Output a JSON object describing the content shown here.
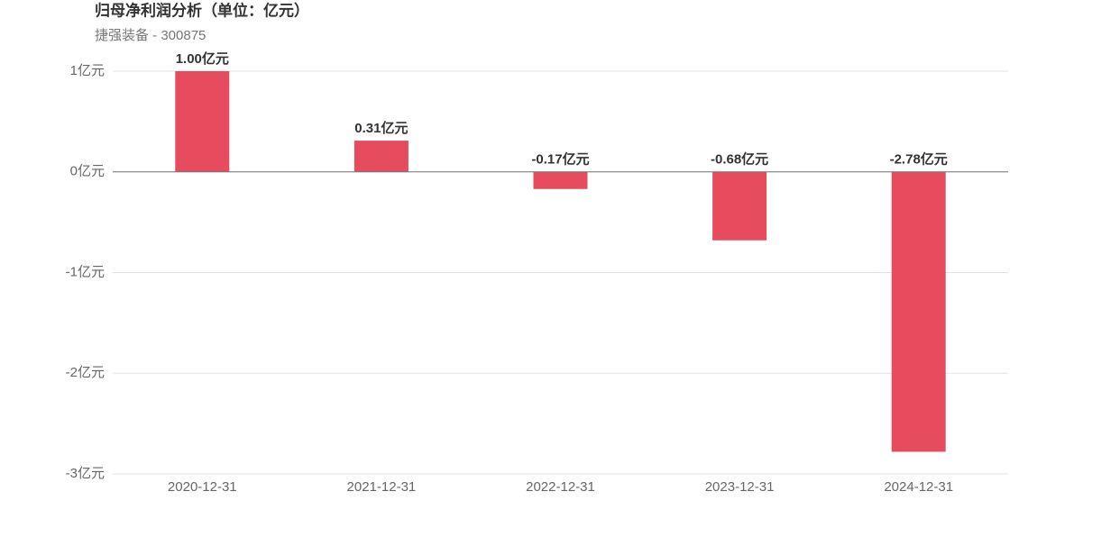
{
  "chart_data": {
    "type": "bar",
    "title": "归母净利润分析（单位：亿元）",
    "subtitle": "捷强装备 - 300875",
    "categories": [
      "2020-12-31",
      "2021-12-31",
      "2022-12-31",
      "2023-12-31",
      "2024-12-31"
    ],
    "values": [
      1.0,
      0.31,
      -0.17,
      -0.68,
      -2.78
    ],
    "value_labels": [
      "1.00亿元",
      "0.31亿元",
      "-0.17亿元",
      "-0.68亿元",
      "-2.78亿元"
    ],
    "color": "#e64c5e",
    "ylim": [
      -3,
      1
    ],
    "yticks": [
      {
        "value": 1,
        "label": "1亿元"
      },
      {
        "value": 0,
        "label": "0亿元"
      },
      {
        "value": -1,
        "label": "-1亿元"
      },
      {
        "value": -2,
        "label": "-2亿元"
      },
      {
        "value": -3,
        "label": "-3亿元"
      }
    ],
    "grid": true
  }
}
